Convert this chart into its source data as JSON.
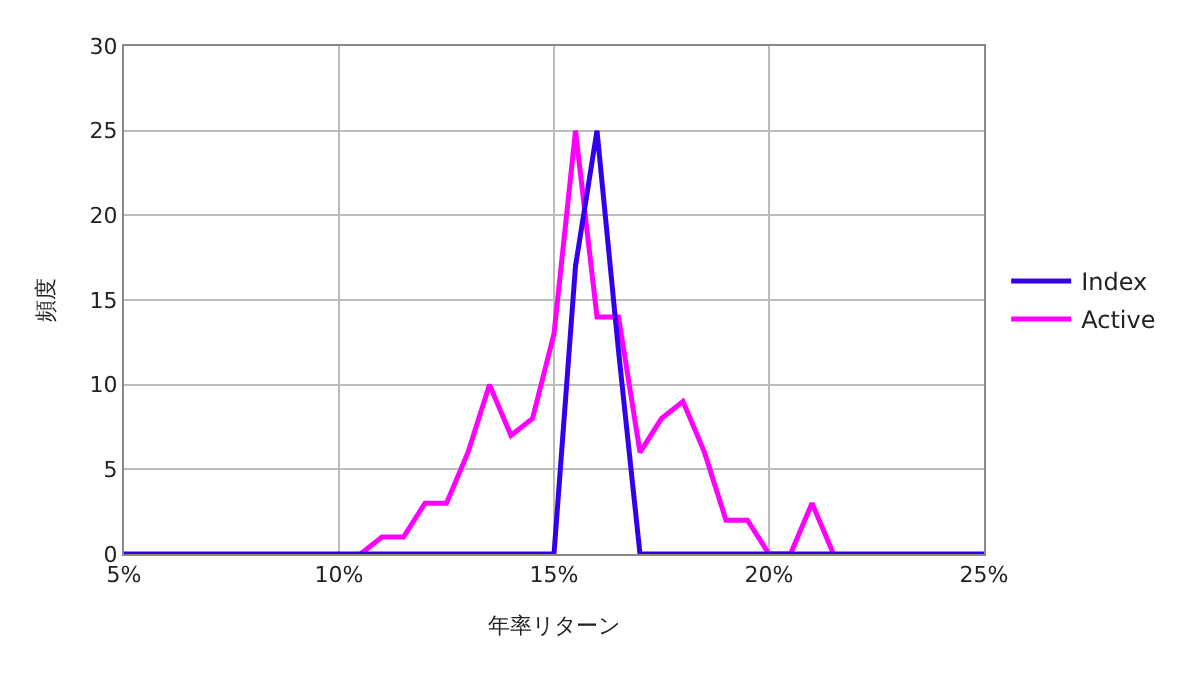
{
  "chart_data": {
    "type": "line",
    "xlabel": "年率リターン",
    "ylabel": "頻度",
    "x": [
      5,
      5.5,
      6,
      6.5,
      7,
      7.5,
      8,
      8.5,
      9,
      9.5,
      10,
      10.5,
      11,
      11.5,
      12,
      12.5,
      13,
      13.5,
      14,
      14.5,
      15,
      15.5,
      16,
      16.5,
      17,
      17.5,
      18,
      18.5,
      19,
      19.5,
      20,
      20.5,
      21,
      21.5,
      22,
      22.5,
      23,
      23.5,
      24,
      24.5,
      25
    ],
    "series": [
      {
        "name": "Index",
        "color": "#3300ee",
        "values": [
          0,
          0,
          0,
          0,
          0,
          0,
          0,
          0,
          0,
          0,
          0,
          0,
          0,
          0,
          0,
          0,
          0,
          0,
          0,
          0,
          0,
          17,
          25,
          12,
          0,
          0,
          0,
          0,
          0,
          0,
          0,
          0,
          0,
          0,
          0,
          0,
          0,
          0,
          0,
          0,
          0
        ]
      },
      {
        "name": "Active",
        "color": "#ff00ff",
        "values": [
          null,
          null,
          null,
          null,
          null,
          null,
          null,
          null,
          null,
          null,
          null,
          0,
          1,
          1,
          3,
          3,
          6,
          10,
          7,
          8,
          13,
          25,
          14,
          14,
          6,
          8,
          9,
          6,
          2,
          2,
          0,
          0,
          3,
          0,
          null,
          null,
          null,
          null,
          null,
          null,
          null
        ]
      }
    ],
    "xlim": [
      5,
      25
    ],
    "xticks": [
      {
        "value": 5,
        "label": "5%"
      },
      {
        "value": 10,
        "label": "10%"
      },
      {
        "value": 15,
        "label": "15%"
      },
      {
        "value": 20,
        "label": "20%"
      },
      {
        "value": 25,
        "label": "25%"
      }
    ],
    "ylim": [
      0,
      30
    ],
    "yticks": [
      0,
      5,
      10,
      15,
      20,
      25,
      30
    ],
    "grid": true,
    "legend": "right",
    "marker": "none",
    "line_style": "solid"
  }
}
